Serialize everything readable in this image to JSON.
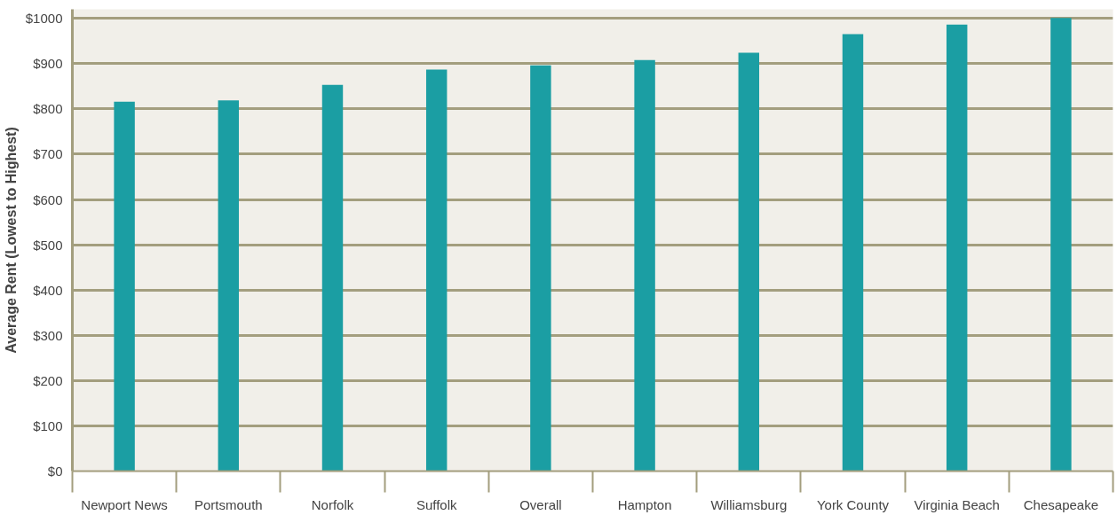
{
  "chart_data": {
    "type": "bar",
    "ylabel": "Average Rent (Lowest to Highest)",
    "categories": [
      "Newport News",
      "Portsmouth",
      "Norfolk",
      "Suffolk",
      "Overall",
      "Hampton",
      "Williamsburg",
      "York County",
      "Virginia Beach",
      "Chesapeake"
    ],
    "values": [
      816,
      819,
      853,
      887,
      896,
      908,
      924,
      965,
      986,
      1001
    ],
    "color": "#1b9ea3",
    "ylim": [
      0,
      1020
    ],
    "yticks": [
      {
        "value": 0,
        "label": "$0"
      },
      {
        "value": 100,
        "label": "$100"
      },
      {
        "value": 200,
        "label": "$200"
      },
      {
        "value": 300,
        "label": "$300"
      },
      {
        "value": 400,
        "label": "$400"
      },
      {
        "value": 500,
        "label": "$500"
      },
      {
        "value": 600,
        "label": "$600"
      },
      {
        "value": 700,
        "label": "$700"
      },
      {
        "value": 800,
        "label": "$800"
      },
      {
        "value": 900,
        "label": "$900"
      },
      {
        "value": 1000,
        "label": "$1000"
      }
    ],
    "grid": "y"
  }
}
